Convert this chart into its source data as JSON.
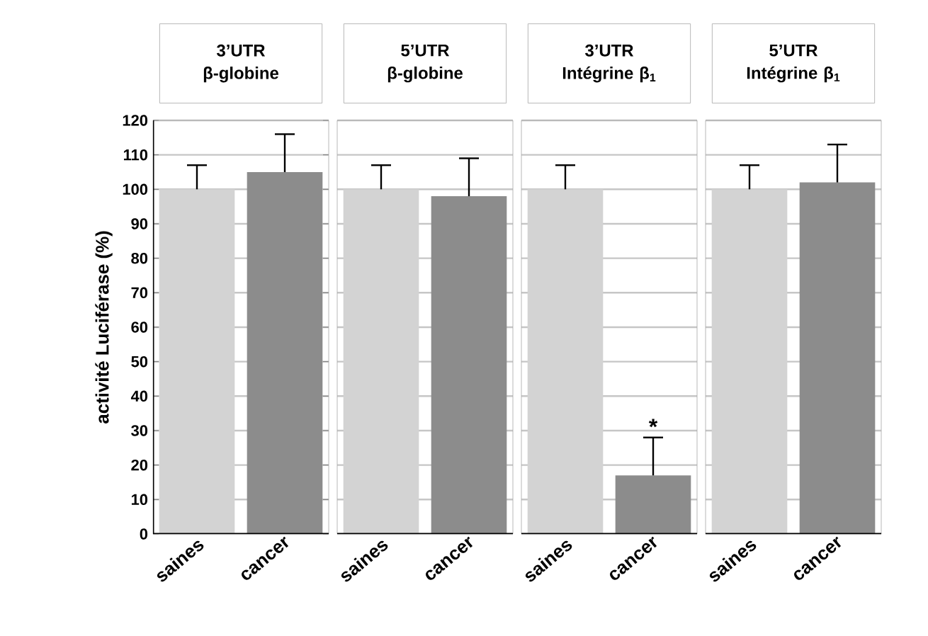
{
  "chart_data": [
    {
      "type": "bar",
      "title": "3’UTR",
      "subtitle": "β-globine",
      "ylabel": "activité Luciférase (%)",
      "categories": [
        "saines",
        "cancer"
      ],
      "values": [
        100,
        105
      ],
      "colors": [
        "#d3d3d3",
        "#8c8c8c"
      ],
      "errors": [
        [
          100,
          107
        ],
        [
          105,
          116
        ]
      ],
      "ylim": [
        0,
        120
      ],
      "yticks": [
        0,
        10,
        20,
        30,
        40,
        50,
        60,
        70,
        80,
        90,
        100,
        110,
        120
      ],
      "grid": "y"
    },
    {
      "type": "bar",
      "title": "5’UTR",
      "subtitle": "β-globine",
      "categories": [
        "saines",
        "cancer"
      ],
      "values": [
        100,
        98
      ],
      "colors": [
        "#d3d3d3",
        "#8c8c8c"
      ],
      "errors": [
        [
          100,
          107
        ],
        [
          98,
          109
        ]
      ],
      "ylim": [
        0,
        120
      ],
      "yticks": [
        0,
        10,
        20,
        30,
        40,
        50,
        60,
        70,
        80,
        90,
        100,
        110,
        120
      ],
      "grid": "y",
      "tick_labels": "x"
    },
    {
      "type": "bar",
      "title": "3’UTR",
      "subtitle": "Intégrine β$_{1}$",
      "categories": [
        "saines",
        "cancer"
      ],
      "values": [
        100,
        17
      ],
      "colors": [
        "#d3d3d3",
        "#8c8c8c"
      ],
      "errors": [
        [
          100,
          107
        ],
        [
          17,
          28
        ]
      ],
      "ylim": [
        0,
        120
      ],
      "yticks": [
        0,
        10,
        20,
        30,
        40,
        50,
        60,
        70,
        80,
        90,
        100,
        110,
        120
      ],
      "grid": "y",
      "tick_labels": "x",
      "annotations": [
        {
          "text": "*",
          "x": "cancer",
          "y": 28
        }
      ]
    },
    {
      "type": "bar",
      "title": "5’UTR",
      "subtitle": "Intégrine β$_{1}$",
      "categories": [
        "saines",
        "cancer"
      ],
      "values": [
        100,
        102
      ],
      "colors": [
        "#d3d3d3",
        "#8c8c8c"
      ],
      "errors": [
        [
          100,
          107
        ],
        [
          102,
          113
        ]
      ],
      "ylim": [
        0,
        120
      ],
      "yticks": [
        0,
        10,
        20,
        30,
        40,
        50,
        60,
        70,
        80,
        90,
        100,
        110,
        120
      ],
      "grid": "y",
      "tick_labels": "x"
    }
  ]
}
